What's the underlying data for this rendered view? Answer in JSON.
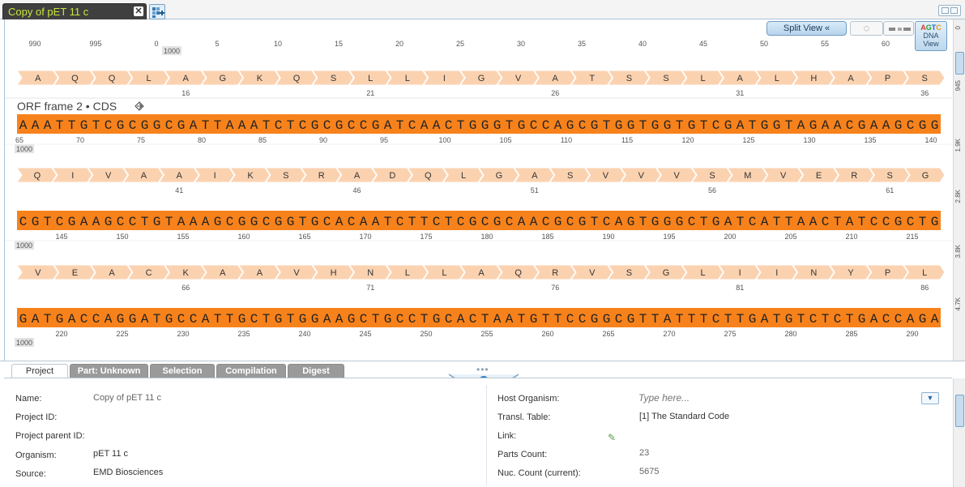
{
  "tabs": [
    {
      "label": "Copy of pET 11 c",
      "close": "✕"
    }
  ],
  "toolbar": {
    "split_view": "Split View  «",
    "dna_view_logo": [
      "A",
      "G",
      "T",
      "C"
    ],
    "dna_view_label_1": "DNA",
    "dna_view_label_2": "View",
    "refresh_icon": "◌"
  },
  "colors": {
    "dna_band": "#f7821b",
    "aa_arrow": "#fbd2b0",
    "tab_label": "#c8e63a",
    "methionine": "#2f9a2f",
    "logo": [
      "#d63a2a",
      "#2f9a2f",
      "#2a5fd6",
      "#e39a16"
    ]
  },
  "top_ruler": {
    "labels": [
      "990",
      "995",
      "0",
      "5",
      "10",
      "15",
      "20",
      "25",
      "30",
      "35",
      "40",
      "45",
      "50",
      "55",
      "60"
    ],
    "badge": "1000"
  },
  "annotation": {
    "label": "ORF frame 2 • CDS",
    "icon": "diamond-arrow-icon"
  },
  "rows": [
    {
      "aa": [
        "A",
        "Q",
        "Q",
        "L",
        "A",
        "G",
        "K",
        "Q",
        "S",
        "L",
        "L",
        "I",
        "G",
        "V",
        "A",
        "T",
        "S",
        "S",
        "L",
        "A",
        "L",
        "H",
        "A",
        "P",
        "S"
      ],
      "aa_nums": [
        "16",
        "21",
        "26",
        "31",
        "36"
      ],
      "dna": "AAATTGTCGCGGCGATTAAATCTCGCGCCGATCAACTGGGTGCCAGCGTGGTGGTGTCGATGGTAGAACGAAGCGG",
      "dna_nums": [
        "65",
        "70",
        "75",
        "80",
        "85",
        "90",
        "95",
        "100",
        "105",
        "110",
        "115",
        "120",
        "125",
        "130",
        "135",
        "140"
      ],
      "badge": "1000",
      "annotation": true
    },
    {
      "aa": [
        "Q",
        "I",
        "V",
        "A",
        "A",
        "I",
        "K",
        "S",
        "R",
        "A",
        "D",
        "Q",
        "L",
        "G",
        "A",
        "S",
        "V",
        "V",
        "V",
        "S",
        "M",
        "V",
        "E",
        "R",
        "S",
        "G"
      ],
      "aa_nums": [
        "41",
        "46",
        "51",
        "56",
        "61"
      ],
      "dna": "CGTCGAAGCCTGTAAAGCGGCGGTGCACAATCTTCTCGCGCAACGCGTCAGTGGGCTGATCATTAACTATCCGCTG",
      "dna_nums": [
        "145",
        "150",
        "155",
        "160",
        "165",
        "170",
        "175",
        "180",
        "185",
        "190",
        "195",
        "200",
        "205",
        "210",
        "215"
      ],
      "badge": "1000",
      "annotation": false
    },
    {
      "aa": [
        "V",
        "E",
        "A",
        "C",
        "K",
        "A",
        "A",
        "V",
        "H",
        "N",
        "L",
        "L",
        "A",
        "Q",
        "R",
        "V",
        "S",
        "G",
        "L",
        "I",
        "I",
        "N",
        "Y",
        "P",
        "L"
      ],
      "aa_nums": [
        "66",
        "71",
        "76",
        "81",
        "86"
      ],
      "dna": "GATGACCAGGATGCCATTGCTGTGGAAGCTGCCTGCACTAATGTTCCGGCGTTATTTCTTGATGTCTCTGACCAGA",
      "dna_nums": [
        "220",
        "225",
        "230",
        "235",
        "240",
        "245",
        "250",
        "255",
        "260",
        "265",
        "270",
        "275",
        "280",
        "285",
        "290"
      ],
      "badge": "1000",
      "annotation": false
    }
  ],
  "right_ruler": [
    "0",
    "945",
    "1.9K",
    "2.8K",
    "3.8K",
    "4.7K"
  ],
  "panel_tabs": [
    "Project",
    "Part: Unknown",
    "Selection",
    "Compilation",
    "Digest"
  ],
  "panel": {
    "grip": "•••",
    "info_icon": "i",
    "left_fields": [
      {
        "label": "Name:",
        "value": "Copy of pET 11 c"
      },
      {
        "label": "Project ID:",
        "value": ""
      },
      {
        "label": "Project parent ID:",
        "value": ""
      },
      {
        "label": "Organism:",
        "value": "pET 11 c"
      },
      {
        "label": "Source:",
        "value": "EMD Biosciences"
      }
    ],
    "right_fields": [
      {
        "label": "Host Organism:",
        "value": ""
      },
      {
        "label": "Transl. Table:",
        "value": "[1] The Standard Code"
      },
      {
        "label": "Link:",
        "value": ""
      },
      {
        "label": "Parts Count:",
        "value": "23"
      },
      {
        "label": "Nuc. Count (current):",
        "value": "5675"
      }
    ],
    "host_placeholder": "Type here...",
    "dropdown_icon": "▼",
    "edit_icon": "✎"
  }
}
